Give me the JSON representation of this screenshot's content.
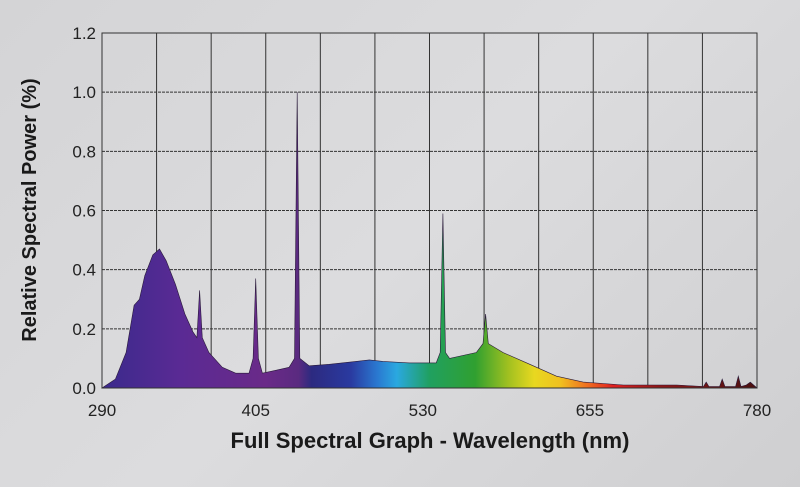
{
  "chart_data": {
    "type": "area",
    "title": "",
    "xlabel": "Full Spectral Graph - Wavelength (nm)",
    "ylabel": "Relative Spectral Power (%)",
    "xlim": [
      290,
      780
    ],
    "ylim": [
      0,
      1.2
    ],
    "xticks": [
      "290",
      "405",
      "530",
      "655",
      "780"
    ],
    "yticks": [
      "0.0",
      "0.2",
      "0.4",
      "0.6",
      "0.8",
      "1.0",
      "1.2"
    ],
    "grid": true,
    "legend": "none",
    "series": [
      {
        "name": "Relative Spectral Power",
        "x": [
          290,
          300,
          308,
          314,
          318,
          322,
          328,
          333,
          338,
          345,
          352,
          358,
          361,
          363,
          365,
          370,
          380,
          390,
          400,
          403,
          405,
          407,
          410,
          420,
          430,
          434,
          436,
          438,
          445,
          460,
          480,
          490,
          500,
          520,
          540,
          543,
          545,
          547,
          550,
          570,
          575,
          577,
          579,
          590,
          610,
          630,
          650,
          680,
          720,
          740,
          742,
          744,
          752,
          754,
          756,
          764,
          766,
          768,
          772,
          775,
          780
        ],
        "y": [
          0,
          0.03,
          0.12,
          0.28,
          0.3,
          0.38,
          0.45,
          0.47,
          0.43,
          0.35,
          0.25,
          0.19,
          0.17,
          0.33,
          0.17,
          0.12,
          0.07,
          0.05,
          0.05,
          0.1,
          0.37,
          0.1,
          0.05,
          0.06,
          0.07,
          0.1,
          1.0,
          0.1,
          0.075,
          0.08,
          0.09,
          0.095,
          0.09,
          0.085,
          0.085,
          0.12,
          0.59,
          0.12,
          0.1,
          0.12,
          0.15,
          0.25,
          0.15,
          0.12,
          0.08,
          0.04,
          0.02,
          0.01,
          0.01,
          0.005,
          0.02,
          0.005,
          0.005,
          0.03,
          0.005,
          0.005,
          0.04,
          0.005,
          0.01,
          0.02,
          0
        ]
      }
    ]
  }
}
